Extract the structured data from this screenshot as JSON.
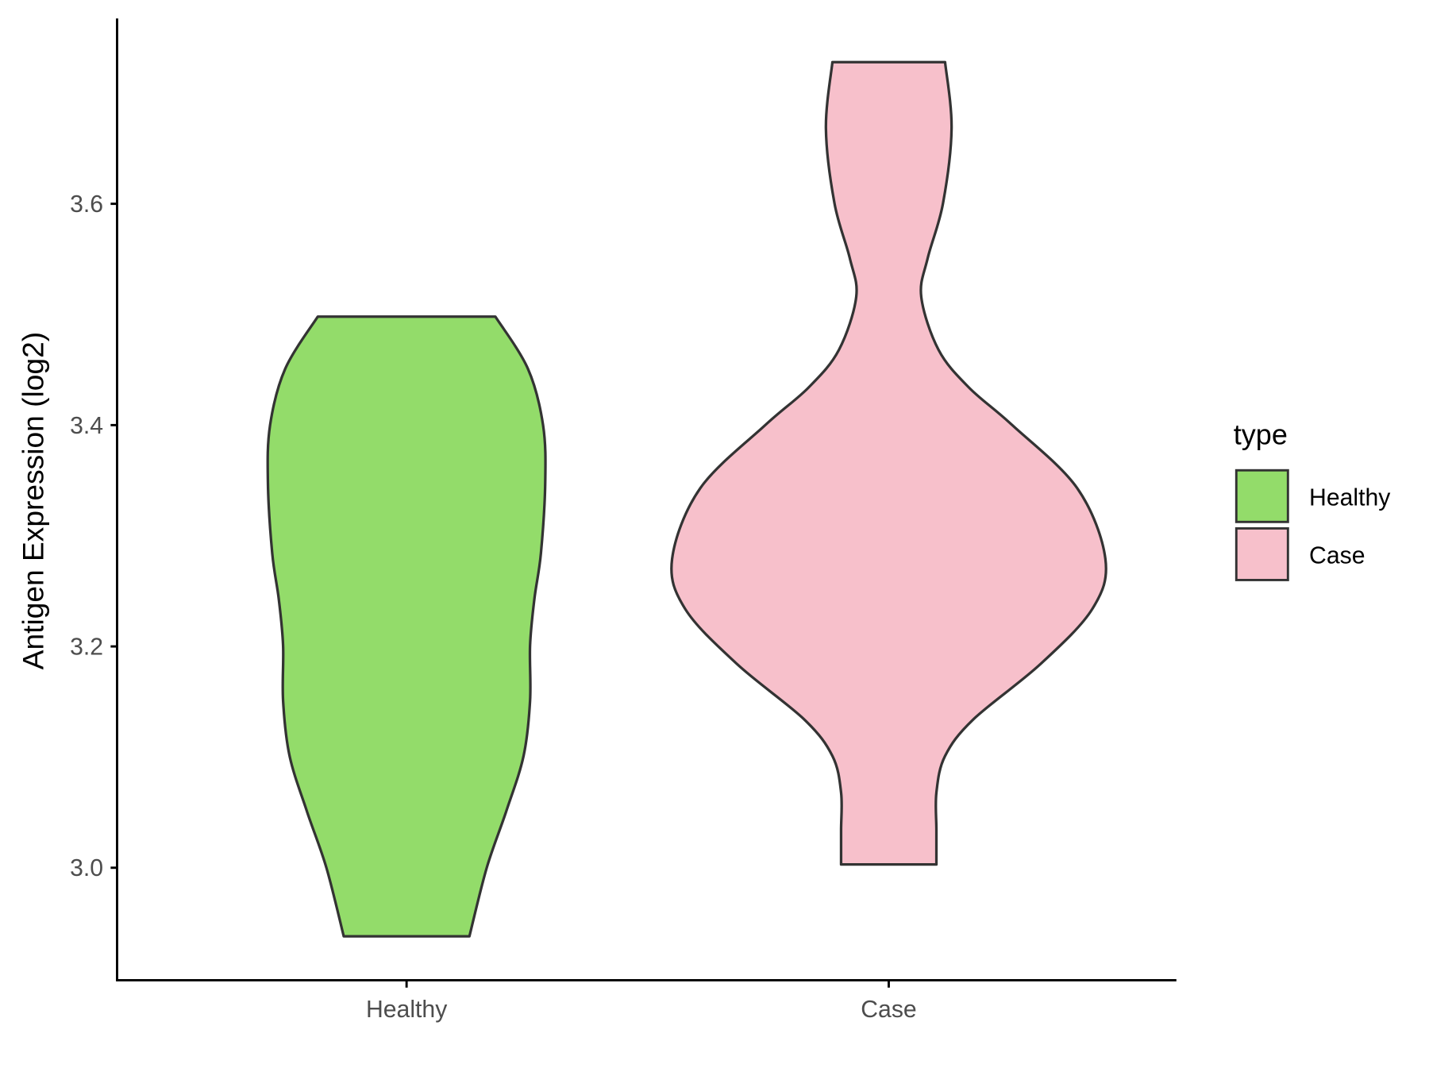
{
  "chart_data": {
    "type": "violin",
    "title": "",
    "xlabel": "",
    "ylabel": "Antigen Expression (log2)",
    "ylim": [
      2.898,
      3.768
    ],
    "yticks": [
      "3.0",
      "3.2",
      "3.4",
      "3.6"
    ],
    "categories": [
      "Healthy",
      "Case"
    ],
    "grid": false,
    "legend": {
      "title": "type",
      "position": "right",
      "entries": [
        "Healthy",
        "Case"
      ]
    },
    "series": [
      {
        "name": "Healthy",
        "color": "#93DC6A",
        "profile": [
          [
            3.498,
            0.41
          ],
          [
            3.451,
            0.56
          ],
          [
            3.4,
            0.63
          ],
          [
            3.348,
            0.64
          ],
          [
            3.284,
            0.62
          ],
          [
            3.243,
            0.59
          ],
          [
            3.201,
            0.57
          ],
          [
            3.151,
            0.57
          ],
          [
            3.101,
            0.54
          ],
          [
            3.051,
            0.46
          ],
          [
            3.0,
            0.37
          ],
          [
            2.938,
            0.29
          ]
        ]
      },
      {
        "name": "Case",
        "color": "#F7C0CB",
        "profile": [
          [
            3.728,
            0.26
          ],
          [
            3.668,
            0.29
          ],
          [
            3.6,
            0.25
          ],
          [
            3.551,
            0.18
          ],
          [
            3.516,
            0.15
          ],
          [
            3.468,
            0.23
          ],
          [
            3.434,
            0.37
          ],
          [
            3.4,
            0.57
          ],
          [
            3.343,
            0.87
          ],
          [
            3.279,
            1.0
          ],
          [
            3.234,
            0.94
          ],
          [
            3.184,
            0.7
          ],
          [
            3.134,
            0.39
          ],
          [
            3.101,
            0.26
          ],
          [
            3.068,
            0.22
          ],
          [
            3.034,
            0.22
          ],
          [
            3.003,
            0.22
          ]
        ]
      }
    ],
    "outline_color": "#333333"
  }
}
